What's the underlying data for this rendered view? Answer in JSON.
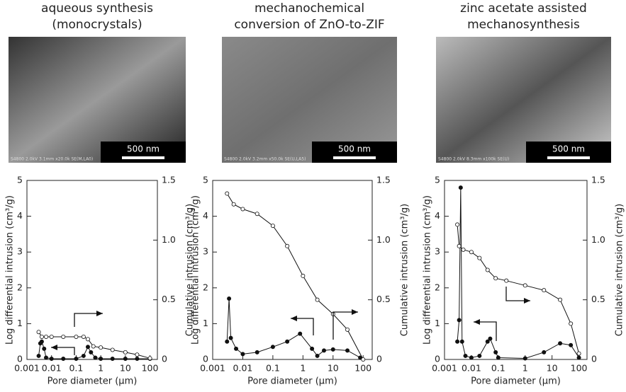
{
  "chart_data": [
    {
      "type": "line",
      "title": [
        "aqueous synthesis",
        "(monocrystals)"
      ],
      "image": {
        "scale_bar": "500 nm",
        "caption": "S4800 2.0kV 3.1mm x20.0k SE(M,LA0)"
      },
      "x_label": "Pore diameter (μm)",
      "y_label": "Log differential intrusion (cm³/g)",
      "y2_label": "Cumulative intrusion (cm³/g)",
      "xlog": true,
      "xlim": [
        0.001,
        200
      ],
      "xticks": [
        0.001,
        0.01,
        0.1,
        1,
        10,
        100
      ],
      "ylim": [
        0,
        5
      ],
      "yticks": [
        0,
        1,
        2,
        3,
        4,
        5
      ],
      "y2lim": [
        0,
        1.5
      ],
      "y2ticks": [
        0,
        {
          "value": 0.5,
          "label": "0.5"
        },
        {
          "value": 1,
          "label": "1.0"
        },
        1.5
      ],
      "series": [
        {
          "name": "Log differential intrusion",
          "marker": "filled",
          "color": "#111",
          "x": [
            0.003,
            0.0035,
            0.004,
            0.005,
            0.006,
            0.01,
            0.03,
            0.1,
            0.2,
            0.3,
            0.4,
            0.6,
            1,
            3,
            10,
            30,
            100
          ],
          "values": [
            0.1,
            0.45,
            0.5,
            0.3,
            0.05,
            0.02,
            0.02,
            0.02,
            0.1,
            0.35,
            0.2,
            0.05,
            0.02,
            0.02,
            0.02,
            0.02,
            0.02
          ]
        },
        {
          "name": "Cumulative intrusion",
          "marker": "open",
          "color": "#111",
          "axis": "y2",
          "x": [
            0.003,
            0.004,
            0.006,
            0.01,
            0.03,
            0.1,
            0.2,
            0.3,
            0.5,
            1,
            3,
            10,
            30,
            100
          ],
          "values": [
            0.23,
            0.19,
            0.19,
            0.19,
            0.19,
            0.19,
            0.19,
            0.17,
            0.11,
            0.1,
            0.08,
            0.06,
            0.04,
            0.01
          ]
        }
      ]
    },
    {
      "type": "line",
      "title": [
        "mechanochemical",
        "conversion of ZnO-to-ZIF"
      ],
      "image": {
        "scale_bar": "500 nm",
        "caption": "S4800 2.0kV 3.2mm x50.0k SE(U,LA5)"
      },
      "x_label": "Pore diameter (μm)",
      "y_label": "Log differential intrusion (cm³/g)",
      "y2_label": "Cumulative intrusion (cm³/g)",
      "xlog": true,
      "xlim": [
        0.001,
        200
      ],
      "xticks": [
        0.001,
        0.01,
        0.1,
        1,
        10,
        100
      ],
      "ylim": [
        0,
        5
      ],
      "yticks": [
        0,
        1,
        2,
        3,
        4,
        5
      ],
      "y2lim": [
        0,
        1.5
      ],
      "y2ticks": [
        0,
        {
          "value": 0.5,
          "label": "0.5"
        },
        {
          "value": 1,
          "label": "1.0"
        },
        1.5
      ],
      "series": [
        {
          "name": "Log differential intrusion",
          "marker": "filled",
          "color": "#111",
          "x": [
            0.003,
            0.0035,
            0.004,
            0.006,
            0.01,
            0.03,
            0.1,
            0.3,
            0.8,
            2,
            3,
            5,
            10,
            30,
            80
          ],
          "values": [
            0.5,
            1.7,
            0.6,
            0.3,
            0.15,
            0.2,
            0.35,
            0.5,
            0.72,
            0.3,
            0.1,
            0.25,
            0.28,
            0.25,
            0.05
          ]
        },
        {
          "name": "Cumulative intrusion",
          "marker": "open",
          "color": "#111",
          "axis": "y2",
          "x": [
            0.003,
            0.005,
            0.01,
            0.03,
            0.1,
            0.3,
            1,
            3,
            10,
            30,
            100
          ],
          "values": [
            1.39,
            1.3,
            1.26,
            1.22,
            1.12,
            0.95,
            0.7,
            0.5,
            0.38,
            0.25,
            0
          ]
        }
      ]
    },
    {
      "type": "line",
      "title": [
        "zinc acetate assisted",
        "mechanosynthesis"
      ],
      "image": {
        "scale_bar": "500 nm",
        "caption": "S4800 2.0kV 8.3mm x100k SE(U)"
      },
      "x_label": "Pore diameter (μm)",
      "y_label": "Log differential intrusion (cm³/g)",
      "y2_label": "Cumulative intrusion (cm³/g)",
      "xlog": true,
      "xlim": [
        0.001,
        200
      ],
      "xticks": [
        0.001,
        0.01,
        0.1,
        1,
        10,
        100
      ],
      "ylim": [
        0,
        5
      ],
      "yticks": [
        0,
        1,
        2,
        3,
        4,
        5
      ],
      "y2lim": [
        0,
        1.5
      ],
      "y2ticks": [
        0,
        {
          "value": 0.5,
          "label": "0.5"
        },
        {
          "value": 1,
          "label": "1.0"
        },
        1.5
      ],
      "series": [
        {
          "name": "Log differential intrusion",
          "marker": "filled",
          "color": "#111",
          "x": [
            0.003,
            0.0035,
            0.004,
            0.0045,
            0.006,
            0.01,
            0.02,
            0.04,
            0.05,
            0.08,
            0.1,
            1,
            5,
            20,
            50,
            100
          ],
          "values": [
            0.5,
            1.1,
            4.8,
            0.5,
            0.1,
            0.05,
            0.1,
            0.5,
            0.58,
            0.2,
            0.05,
            0.03,
            0.2,
            0.45,
            0.4,
            0.05
          ]
        },
        {
          "name": "Cumulative intrusion",
          "marker": "open",
          "color": "#111",
          "axis": "y2",
          "x": [
            0.003,
            0.0035,
            0.005,
            0.01,
            0.02,
            0.04,
            0.08,
            0.2,
            1,
            5,
            20,
            50,
            100
          ],
          "values": [
            1.13,
            0.95,
            0.92,
            0.9,
            0.85,
            0.75,
            0.68,
            0.66,
            0.62,
            0.58,
            0.5,
            0.3,
            0.05
          ]
        }
      ]
    }
  ]
}
